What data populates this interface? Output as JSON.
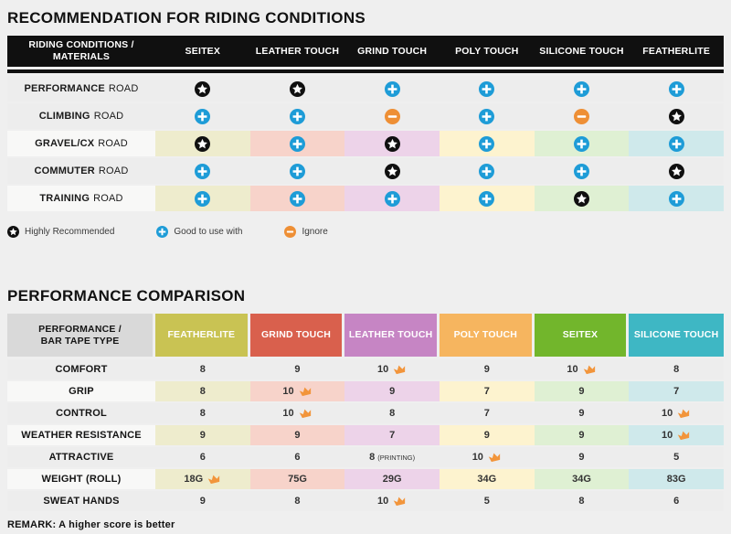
{
  "colors": {
    "page_bg": "#efefef",
    "header_black": "#101010",
    "corner_gray": "#d9d9d9",
    "row_gray": "#ededed",
    "row_light_label": "#f8f8f7",
    "icon_star": "#101010",
    "icon_plus": "#1e9cd7",
    "icon_minus": "#ee8f35",
    "icon_crown": "#f2953b",
    "tint_palette": [
      "#eeeccd",
      "#f7d3ca",
      "#edd3e9",
      "#fdf3cf",
      "#dff0d3",
      "#cfe9eb"
    ]
  },
  "chart_data": [
    {
      "type": "table",
      "title": "RECOMMENDATION FOR RIDING CONDITIONS",
      "corner_line1": "RIDING CONDITIONS /",
      "corner_line2": "MATERIALS",
      "columns": [
        "SEITEX",
        "LEATHER TOUCH",
        "GRIND TOUCH",
        "POLY TOUCH",
        "SILICONE TOUCH",
        "FEATHERLITE"
      ],
      "rows": [
        {
          "label_strong": "PERFORMANCE",
          "label_rest": "ROAD",
          "tinted": false,
          "ratings": [
            "star",
            "star",
            "plus",
            "plus",
            "plus",
            "plus"
          ]
        },
        {
          "label_strong": "CLIMBING",
          "label_rest": "ROAD",
          "tinted": false,
          "ratings": [
            "plus",
            "plus",
            "minus",
            "plus",
            "minus",
            "star"
          ]
        },
        {
          "label_strong": "GRAVEL/CX",
          "label_rest": "ROAD",
          "tinted": true,
          "ratings": [
            "star",
            "plus",
            "star",
            "plus",
            "plus",
            "plus"
          ]
        },
        {
          "label_strong": "COMMUTER",
          "label_rest": "ROAD",
          "tinted": false,
          "ratings": [
            "plus",
            "plus",
            "star",
            "plus",
            "plus",
            "star"
          ]
        },
        {
          "label_strong": "TRAINING",
          "label_rest": "ROAD",
          "tinted": true,
          "ratings": [
            "plus",
            "plus",
            "plus",
            "plus",
            "star",
            "plus"
          ]
        }
      ],
      "rating_legend": [
        {
          "icon": "star",
          "label": "Highly Recommended"
        },
        {
          "icon": "plus",
          "label": "Good to use with"
        },
        {
          "icon": "minus",
          "label": "Ignore"
        }
      ]
    },
    {
      "type": "table",
      "title": "PERFORMANCE COMPARISON",
      "corner_line1": "PERFORMANCE /",
      "corner_line2": "BAR TAPE TYPE",
      "columns": [
        {
          "label": "FEATHERLITE",
          "color": "#c9c353"
        },
        {
          "label": "GRIND TOUCH",
          "color": "#d9604d"
        },
        {
          "label": "LEATHER TOUCH",
          "color": "#c685c4"
        },
        {
          "label": "POLY TOUCH",
          "color": "#f6b55f"
        },
        {
          "label": "SEITEX",
          "color": "#72b62c"
        },
        {
          "label": "SILICONE TOUCH",
          "color": "#3eb7c4"
        }
      ],
      "rows": [
        {
          "label": "COMFORT",
          "tinted": false,
          "cells": [
            {
              "v": "8"
            },
            {
              "v": "9"
            },
            {
              "v": "10",
              "crown": true
            },
            {
              "v": "9"
            },
            {
              "v": "10",
              "crown": true
            },
            {
              "v": "8"
            }
          ]
        },
        {
          "label": "GRIP",
          "tinted": true,
          "cells": [
            {
              "v": "8"
            },
            {
              "v": "10",
              "crown": true
            },
            {
              "v": "9"
            },
            {
              "v": "7"
            },
            {
              "v": "9"
            },
            {
              "v": "7"
            }
          ]
        },
        {
          "label": "CONTROL",
          "tinted": false,
          "cells": [
            {
              "v": "8"
            },
            {
              "v": "10",
              "crown": true
            },
            {
              "v": "8"
            },
            {
              "v": "7"
            },
            {
              "v": "9"
            },
            {
              "v": "10",
              "crown": true
            }
          ]
        },
        {
          "label": "WEATHER RESISTANCE",
          "tinted": true,
          "cells": [
            {
              "v": "9"
            },
            {
              "v": "9"
            },
            {
              "v": "7"
            },
            {
              "v": "9"
            },
            {
              "v": "9"
            },
            {
              "v": "10",
              "crown": true
            }
          ]
        },
        {
          "label": "ATTRACTIVE",
          "tinted": false,
          "cells": [
            {
              "v": "6"
            },
            {
              "v": "6"
            },
            {
              "v": "8",
              "suffix": "(PRINTING)"
            },
            {
              "v": "10",
              "crown": true
            },
            {
              "v": "9"
            },
            {
              "v": "5"
            }
          ]
        },
        {
          "label": "WEIGHT (ROLL)",
          "tinted": true,
          "cells": [
            {
              "v": "18G",
              "crown": true
            },
            {
              "v": "75G"
            },
            {
              "v": "29G"
            },
            {
              "v": "34G"
            },
            {
              "v": "34G"
            },
            {
              "v": "83G"
            }
          ]
        },
        {
          "label": "SWEAT HANDS",
          "tinted": false,
          "cells": [
            {
              "v": "9"
            },
            {
              "v": "8"
            },
            {
              "v": "10",
              "crown": true
            },
            {
              "v": "5"
            },
            {
              "v": "8"
            },
            {
              "v": "6"
            }
          ]
        }
      ],
      "remark": "REMARK: A higher score is better"
    }
  ]
}
